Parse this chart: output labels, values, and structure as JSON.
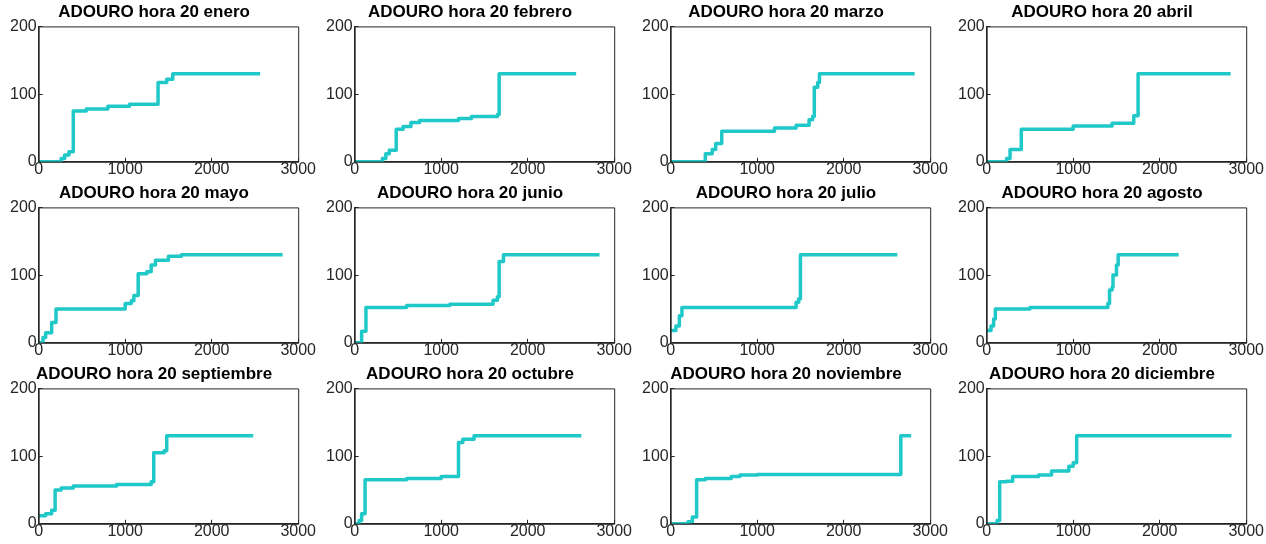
{
  "chart_data": [
    {
      "type": "step",
      "title": "ADOURO hora 20 enero",
      "x": [
        0,
        260,
        300,
        350,
        400,
        550,
        800,
        1050,
        1380,
        1480,
        1550,
        2560
      ],
      "values": [
        0,
        5,
        10,
        15,
        75,
        78,
        82,
        85,
        117,
        122,
        130,
        130
      ],
      "color": "#20c8c8",
      "xlim": [
        0,
        3000
      ],
      "ylim": [
        0,
        200
      ],
      "xticks": [
        0,
        1000,
        2000,
        3000
      ],
      "yticks": [
        0,
        100,
        200
      ]
    },
    {
      "type": "step",
      "title": "ADOURO hora 20 febrero",
      "x": [
        0,
        320,
        360,
        400,
        480,
        560,
        650,
        750,
        1200,
        1350,
        1650,
        1670,
        2560
      ],
      "values": [
        0,
        5,
        12,
        17,
        48,
        52,
        58,
        61,
        64,
        67,
        70,
        130,
        130
      ],
      "color": "#20c8c8",
      "xlim": [
        0,
        3000
      ],
      "ylim": [
        0,
        200
      ],
      "xticks": [
        0,
        1000,
        2000,
        3000
      ],
      "yticks": [
        0,
        100,
        200
      ]
    },
    {
      "type": "step",
      "title": "ADOURO hora 20 marzo",
      "x": [
        0,
        400,
        480,
        520,
        590,
        1200,
        1450,
        1600,
        1640,
        1660,
        1700,
        1720,
        2820
      ],
      "values": [
        0,
        12,
        18,
        27,
        45,
        50,
        54,
        62,
        67,
        110,
        117,
        130,
        130
      ],
      "color": "#20c8c8",
      "xlim": [
        0,
        3000
      ],
      "ylim": [
        0,
        200
      ],
      "xticks": [
        0,
        1000,
        2000,
        3000
      ],
      "yticks": [
        0,
        100,
        200
      ]
    },
    {
      "type": "step",
      "title": "ADOURO hora 20 abril",
      "x": [
        0,
        230,
        270,
        400,
        1000,
        1450,
        1700,
        1750,
        2820
      ],
      "values": [
        0,
        5,
        18,
        48,
        53,
        57,
        68,
        130,
        130
      ],
      "color": "#20c8c8",
      "xlim": [
        0,
        3000
      ],
      "ylim": [
        0,
        200
      ],
      "xticks": [
        0,
        1000,
        2000,
        3000
      ],
      "yticks": [
        0,
        100,
        200
      ]
    },
    {
      "type": "step",
      "title": "ADOURO hora 20 mayo",
      "x": [
        0,
        50,
        80,
        150,
        200,
        1000,
        1070,
        1100,
        1150,
        1250,
        1300,
        1350,
        1500,
        1650,
        2820
      ],
      "values": [
        0,
        8,
        15,
        30,
        50,
        58,
        62,
        70,
        102,
        105,
        115,
        122,
        128,
        130,
        130
      ],
      "color": "#20c8c8",
      "xlim": [
        0,
        3000
      ],
      "ylim": [
        0,
        200
      ],
      "xticks": [
        0,
        1000,
        2000,
        3000
      ],
      "yticks": [
        0,
        100,
        200
      ]
    },
    {
      "type": "step",
      "title": "ADOURO hora 20 junio",
      "x": [
        0,
        80,
        130,
        600,
        1100,
        1600,
        1650,
        1670,
        1720,
        2830
      ],
      "values": [
        0,
        17,
        52,
        55,
        57,
        63,
        68,
        120,
        130,
        130
      ],
      "color": "#20c8c8",
      "xlim": [
        0,
        3000
      ],
      "ylim": [
        0,
        200
      ],
      "xticks": [
        0,
        1000,
        2000,
        3000
      ],
      "yticks": [
        0,
        100,
        200
      ]
    },
    {
      "type": "step",
      "title": "ADOURO hora 20 julio",
      "x": [
        0,
        60,
        100,
        130,
        1450,
        1480,
        1500,
        2620
      ],
      "values": [
        18,
        25,
        40,
        52,
        60,
        65,
        130,
        130
      ],
      "color": "#20c8c8",
      "xlim": [
        0,
        3000
      ],
      "ylim": [
        0,
        200
      ],
      "xticks": [
        0,
        1000,
        2000,
        3000
      ],
      "yticks": [
        0,
        100,
        200
      ]
    },
    {
      "type": "step",
      "title": "ADOURO hora 20 agosto",
      "x": [
        0,
        50,
        80,
        100,
        500,
        1400,
        1420,
        1450,
        1460,
        1500,
        1520,
        2220
      ],
      "values": [
        18,
        25,
        35,
        50,
        52,
        58,
        78,
        82,
        100,
        115,
        130,
        130
      ],
      "color": "#20c8c8",
      "xlim": [
        0,
        3000
      ],
      "ylim": [
        0,
        200
      ],
      "xticks": [
        0,
        1000,
        2000,
        3000
      ],
      "yticks": [
        0,
        100,
        200
      ]
    },
    {
      "type": "step",
      "title": "ADOURO hora 20 septiembre",
      "x": [
        0,
        80,
        150,
        190,
        260,
        400,
        900,
        1300,
        1330,
        1450,
        1480,
        2480
      ],
      "values": [
        12,
        15,
        20,
        50,
        53,
        56,
        58,
        62,
        105,
        108,
        130,
        130
      ],
      "color": "#20c8c8",
      "xlim": [
        0,
        3000
      ],
      "ylim": [
        0,
        200
      ],
      "xticks": [
        0,
        1000,
        2000,
        3000
      ],
      "yticks": [
        0,
        100,
        200
      ]
    },
    {
      "type": "step",
      "title": "ADOURO hora 20 octubre",
      "x": [
        0,
        50,
        80,
        120,
        600,
        1000,
        1200,
        1250,
        1380,
        2620
      ],
      "values": [
        0,
        5,
        15,
        65,
        67,
        70,
        120,
        125,
        130,
        130
      ],
      "color": "#20c8c8",
      "xlim": [
        0,
        3000
      ],
      "ylim": [
        0,
        200
      ],
      "xticks": [
        0,
        1000,
        2000,
        3000
      ],
      "yticks": [
        0,
        100,
        200
      ]
    },
    {
      "type": "step",
      "title": "ADOURO hora 20 noviembre",
      "x": [
        0,
        200,
        250,
        300,
        400,
        700,
        800,
        1000,
        2640,
        2660,
        2780
      ],
      "values": [
        0,
        3,
        10,
        65,
        67,
        70,
        72,
        73,
        73,
        130,
        130
      ],
      "color": "#20c8c8",
      "xlim": [
        0,
        3000
      ],
      "ylim": [
        0,
        200
      ],
      "xticks": [
        0,
        1000,
        2000,
        3000
      ],
      "yticks": [
        0,
        100,
        200
      ]
    },
    {
      "type": "step",
      "title": "ADOURO hora 20 diciembre",
      "x": [
        0,
        120,
        150,
        230,
        300,
        600,
        750,
        950,
        1000,
        1040,
        2830
      ],
      "values": [
        0,
        5,
        62,
        63,
        70,
        72,
        78,
        85,
        90,
        130,
        130
      ],
      "color": "#20c8c8",
      "xlim": [
        0,
        3000
      ],
      "ylim": [
        0,
        200
      ],
      "xticks": [
        0,
        1000,
        2000,
        3000
      ],
      "yticks": [
        0,
        100,
        200
      ]
    }
  ]
}
